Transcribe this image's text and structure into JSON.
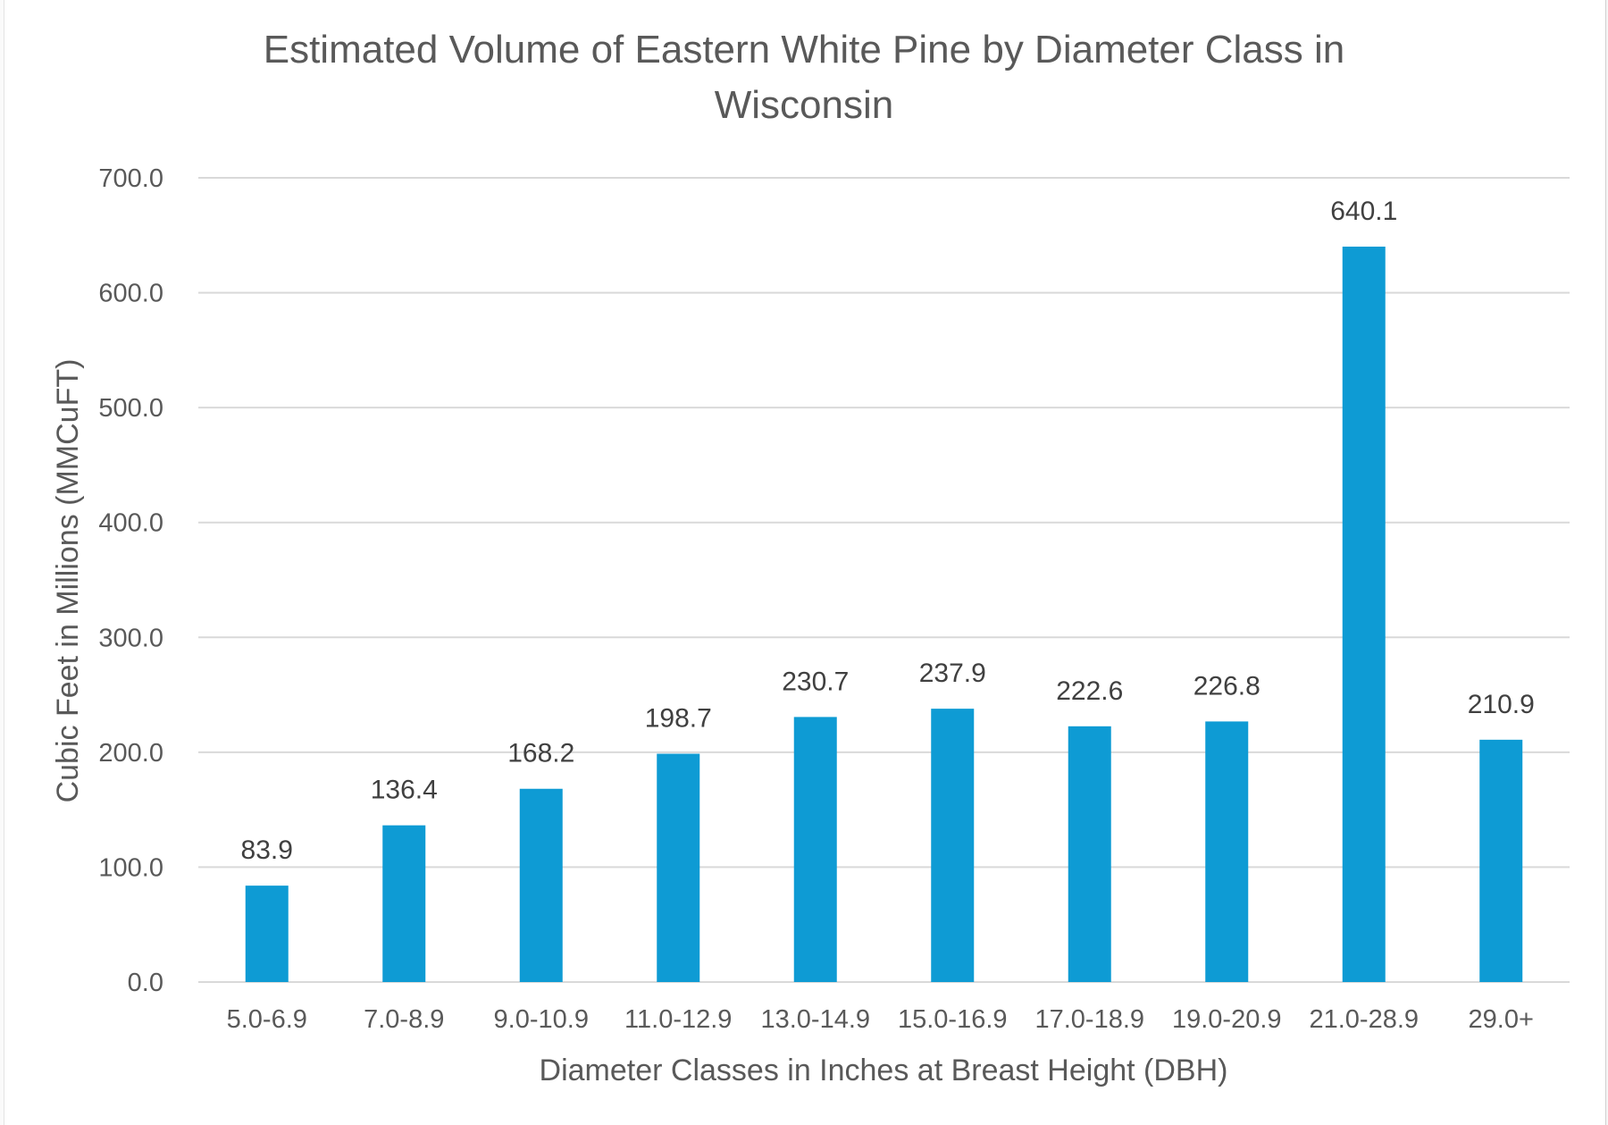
{
  "chart_data": {
    "type": "bar",
    "title_lines": [
      "Estimated Volume of Eastern White Pine by Diameter Class in",
      "Wisconsin"
    ],
    "xlabel": "Diameter Classes in Inches at Breast Height (DBH)",
    "ylabel": "Cubic Feet in Millions (MMCuFT)",
    "categories": [
      "5.0-6.9",
      "7.0-8.9",
      "9.0-10.9",
      "11.0-12.9",
      "13.0-14.9",
      "15.0-16.9",
      "17.0-18.9",
      "19.0-20.9",
      "21.0-28.9",
      "29.0+"
    ],
    "values": [
      83.9,
      136.4,
      168.2,
      198.7,
      230.7,
      237.9,
      222.6,
      226.8,
      640.1,
      210.9
    ],
    "value_labels": [
      "83.9",
      "136.4",
      "168.2",
      "198.7",
      "230.7",
      "237.9",
      "222.6",
      "226.8",
      "640.1",
      "210.9"
    ],
    "yticks": [
      0,
      100,
      200,
      300,
      400,
      500,
      600,
      700
    ],
    "ytick_labels": [
      "0.0",
      "100.0",
      "200.0",
      "300.0",
      "400.0",
      "500.0",
      "600.0",
      "700.0"
    ],
    "ylim": [
      0,
      700
    ],
    "grid": true,
    "legend": "none",
    "bar_color": "#0E9BD4",
    "grid_color": "#D9D9D9",
    "text_color": "#595959"
  }
}
